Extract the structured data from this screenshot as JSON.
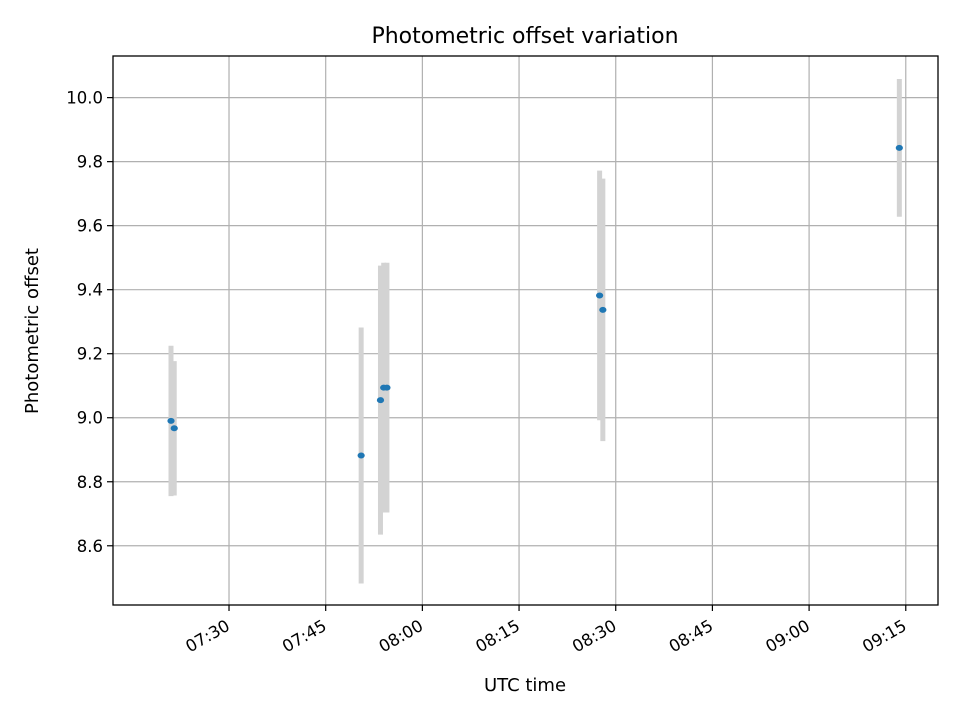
{
  "chart_data": {
    "type": "scatter",
    "title": "Photometric offset variation",
    "xlabel": "UTC time",
    "ylabel": "Photometric offset",
    "x_axis": "time",
    "xlim": [
      "07:12",
      "09:20"
    ],
    "ylim": [
      8.415,
      10.13
    ],
    "xticks": [
      "07:30",
      "07:45",
      "08:00",
      "08:15",
      "08:30",
      "08:45",
      "09:00",
      "09:15"
    ],
    "yticks": [
      "8.6",
      "8.8",
      "9.0",
      "9.2",
      "9.4",
      "9.6",
      "9.8",
      "10.0"
    ],
    "grid": true,
    "marker_color": "#1f77b4",
    "errorbar_color": "#d3d3d3",
    "points": [
      {
        "x": "07:21:00",
        "y": 8.99,
        "yerr": 0.235
      },
      {
        "x": "07:21:30",
        "y": 8.967,
        "yerr": 0.21
      },
      {
        "x": "07:50:30",
        "y": 8.882,
        "yerr": 0.4
      },
      {
        "x": "07:53:30",
        "y": 9.055,
        "yerr": 0.42
      },
      {
        "x": "07:54:00",
        "y": 9.094,
        "yerr": 0.39
      },
      {
        "x": "07:54:30",
        "y": 9.094,
        "yerr": 0.39
      },
      {
        "x": "08:27:30",
        "y": 9.382,
        "yerr": 0.39
      },
      {
        "x": "08:28:00",
        "y": 9.337,
        "yerr": 0.41
      },
      {
        "x": "09:14:00",
        "y": 9.843,
        "yerr": 0.215
      }
    ]
  }
}
